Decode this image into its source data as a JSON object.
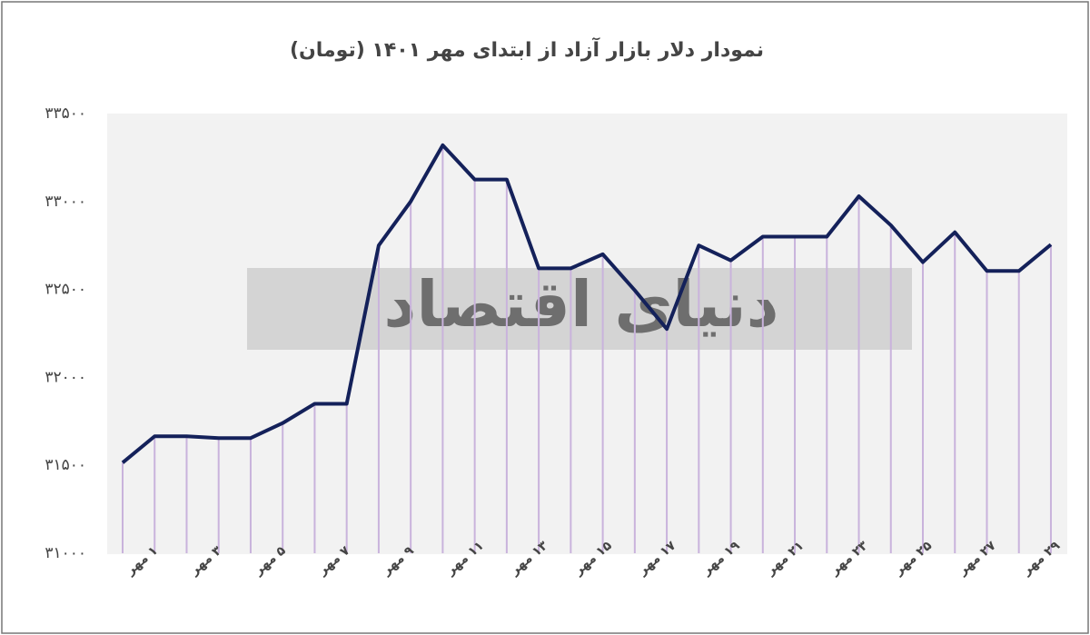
{
  "chart_data": {
    "type": "line",
    "title": "نمودار دلار بازار آزاد از ابتدای مهر ۱۴۰۱ (تومان)",
    "watermark": "دنیای اقتصاد",
    "categories": [
      "۱ مهر",
      null,
      "۳ مهر",
      null,
      "۵ مهر",
      null,
      "۷ مهر",
      null,
      "۹ مهر",
      null,
      "۱۱ مهر",
      null,
      "۱۳ مهر",
      null,
      "۱۵ مهر",
      null,
      "۱۷ مهر",
      null,
      "۱۹ مهر",
      null,
      "۲۱ مهر",
      null,
      "۲۳ مهر",
      null,
      "۲۵ مهر",
      null,
      "۲۷ مهر",
      null,
      "۲۹ مهر",
      null
    ],
    "values": [
      31515,
      31665,
      31665,
      31655,
      31655,
      31740,
      31850,
      31850,
      32750,
      33000,
      33320,
      33125,
      33125,
      32620,
      32620,
      32700,
      32495,
      32275,
      32750,
      32665,
      32800,
      32800,
      32800,
      33030,
      32865,
      32655,
      32825,
      32605,
      32605,
      32755
    ],
    "color": "#14215a",
    "drop_line_color": "#c9b3dc",
    "ylim": [
      31000,
      33500
    ],
    "yticks": [
      {
        "value": 31000,
        "label": "۳۱۰۰۰"
      },
      {
        "value": 31500,
        "label": "۳۱۵۰۰"
      },
      {
        "value": 32000,
        "label": "۳۲۰۰۰"
      },
      {
        "value": 32500,
        "label": "۳۲۵۰۰"
      },
      {
        "value": 33000,
        "label": "۳۳۰۰۰"
      },
      {
        "value": 33500,
        "label": "۳۳۵۰۰"
      }
    ]
  }
}
